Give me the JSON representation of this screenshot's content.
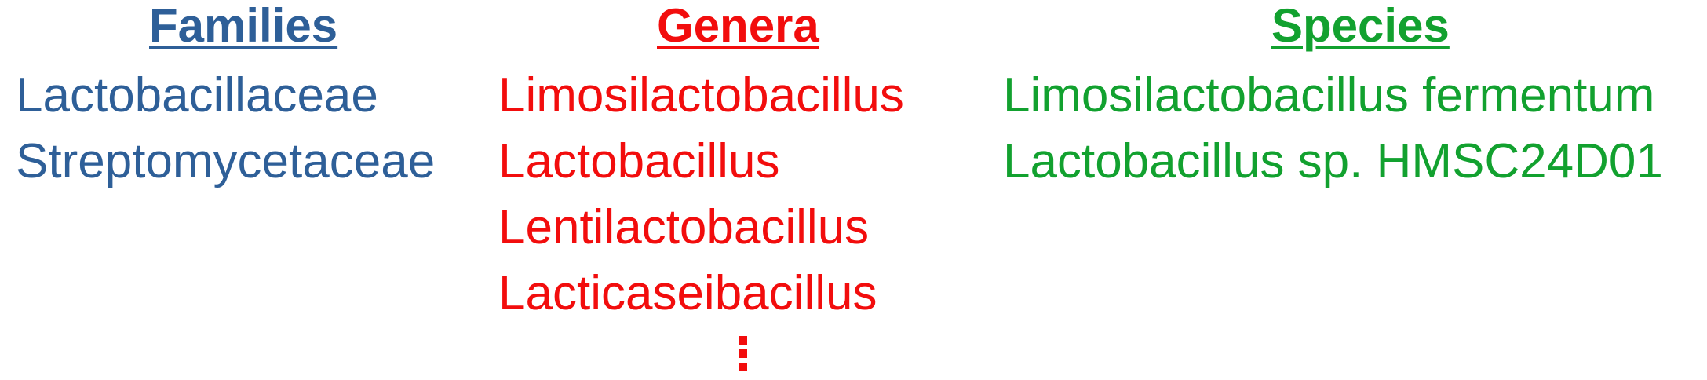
{
  "colors": {
    "families": "#2e5f98",
    "genera": "#f20d0d",
    "species": "#12a12f"
  },
  "families": {
    "heading": "Families",
    "items": [
      "Lactobacillaceae",
      "Streptomycetaceae"
    ]
  },
  "genera": {
    "heading": "Genera",
    "items": [
      "Limosilactobacillus",
      "Lactobacillus",
      "Lentilactobacillus",
      "Lacticaseibacillus"
    ],
    "more_icon": "vertical-ellipsis-icon"
  },
  "species": {
    "heading": "Species",
    "items": [
      "Limosilactobacillus fermentum",
      "Lactobacillus sp. HMSC24D01"
    ]
  }
}
